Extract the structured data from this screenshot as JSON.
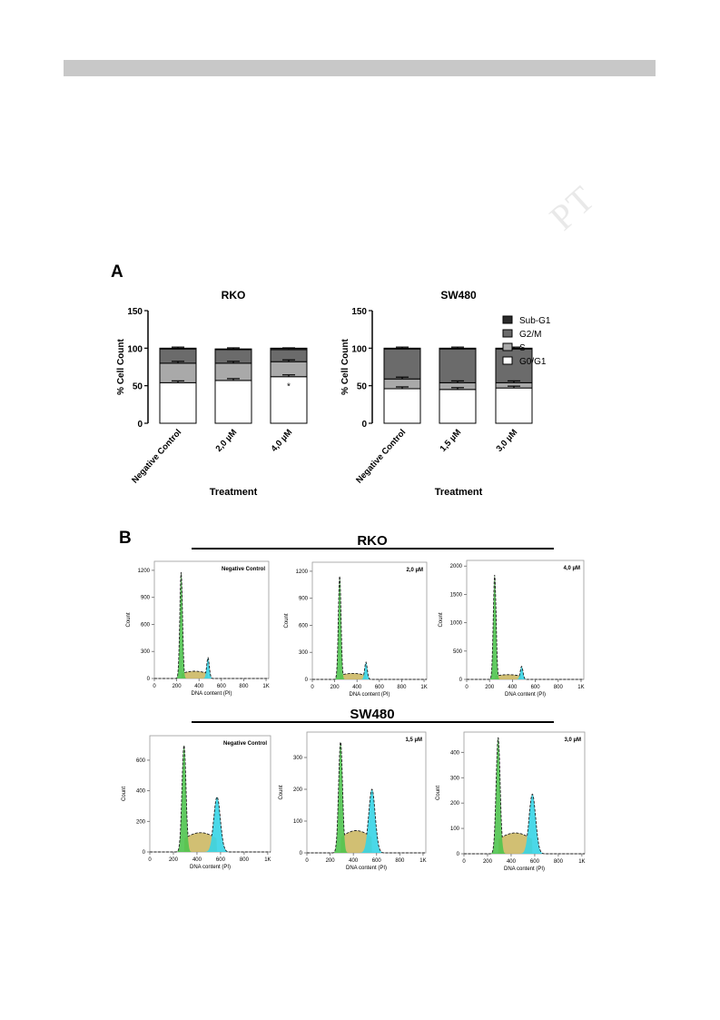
{
  "page": {
    "watermark": "PT"
  },
  "panel_labels": {
    "a": "A",
    "b": "B"
  },
  "panel_b_titles": {
    "rko": "RKO",
    "sw480": "SW480"
  },
  "colors": {
    "g0g1": "#ffffff",
    "s": "#a9a9a9",
    "g2m": "#6b6b6b",
    "subg1": "#2b2b2b",
    "peak1": "#4fc44f",
    "peak_s": "#c9b45a",
    "peak2": "#36d4e6"
  },
  "chart_data": [
    {
      "type": "bar",
      "stacked": true,
      "title": "RKO",
      "xlabel": "Treatment",
      "ylabel": "% Cell Count",
      "ylim": [
        0,
        150
      ],
      "yticks": [
        "0",
        "50",
        "100",
        "150"
      ],
      "categories": [
        "Negative Control",
        "2,0 µM",
        "4,0 µM"
      ],
      "series": [
        {
          "name": "G0/G1",
          "values": [
            54,
            57,
            62
          ]
        },
        {
          "name": "S",
          "values": [
            26,
            23,
            20
          ]
        },
        {
          "name": "G2/M",
          "values": [
            19,
            18,
            16
          ]
        },
        {
          "name": "Sub-G1",
          "values": [
            1,
            1,
            2
          ]
        }
      ],
      "annotations": [
        "",
        "",
        "*"
      ]
    },
    {
      "type": "bar",
      "stacked": true,
      "title": "SW480",
      "xlabel": "Treatment",
      "ylabel": "% Cell Count",
      "ylim": [
        0,
        150
      ],
      "yticks": [
        "0",
        "50",
        "100",
        "150"
      ],
      "categories": [
        "Negative Control",
        "1,5 µM",
        "3,0 µM"
      ],
      "series": [
        {
          "name": "G0/G1",
          "values": [
            46,
            45,
            47
          ]
        },
        {
          "name": "S",
          "values": [
            13,
            9,
            7
          ]
        },
        {
          "name": "G2/M",
          "values": [
            40,
            45,
            45
          ]
        },
        {
          "name": "Sub-G1",
          "values": [
            1,
            1,
            1
          ]
        }
      ],
      "legend": [
        "Sub-G1",
        "G2/M",
        "S",
        "G0/G1"
      ],
      "legend_position": "right"
    },
    {
      "type": "area",
      "label": "Negative Control",
      "xlabel": "DNA content (PI)",
      "ylabel": "Count",
      "xlim": [
        0,
        1024
      ],
      "ylim": [
        0,
        1300
      ],
      "xticks": [
        "0",
        "200",
        "400",
        "600",
        "800",
        "1K"
      ],
      "yticks": [
        "0",
        "300",
        "600",
        "900",
        "1200"
      ],
      "g1_peak": {
        "x": 240,
        "height": 1180
      },
      "g2_peak": {
        "x": 480,
        "height": 230
      }
    },
    {
      "type": "area",
      "label": "2,0 µM",
      "xlabel": "DNA content (PI)",
      "ylabel": "Count",
      "xlim": [
        0,
        1024
      ],
      "ylim": [
        0,
        1300
      ],
      "xticks": [
        "0",
        "200",
        "400",
        "600",
        "800",
        "1K"
      ],
      "yticks": [
        "0",
        "300",
        "600",
        "900",
        "1200"
      ],
      "g1_peak": {
        "x": 245,
        "height": 1150
      },
      "g2_peak": {
        "x": 480,
        "height": 190
      }
    },
    {
      "type": "area",
      "label": "4,0 µM",
      "xlabel": "DNA content (PI)",
      "ylabel": "Count",
      "xlim": [
        0,
        1024
      ],
      "ylim": [
        0,
        2100
      ],
      "xticks": [
        "0",
        "200",
        "400",
        "600",
        "800",
        "1K"
      ],
      "yticks": [
        "0",
        "500",
        "1000",
        "1500",
        "2000"
      ],
      "g1_peak": {
        "x": 245,
        "height": 1850
      },
      "g2_peak": {
        "x": 480,
        "height": 230
      }
    },
    {
      "type": "area",
      "label": "Negative Control",
      "xlabel": "DNA content (PI)",
      "ylabel": "Count",
      "xlim": [
        0,
        1024
      ],
      "ylim": [
        0,
        760
      ],
      "xticks": [
        "0",
        "200",
        "400",
        "600",
        "800",
        "1K"
      ],
      "yticks": [
        "0",
        "200",
        "400",
        "600"
      ],
      "g1_peak": {
        "x": 290,
        "height": 700
      },
      "g2_peak": {
        "x": 570,
        "height": 360
      }
    },
    {
      "type": "area",
      "label": "1,5 µM",
      "xlabel": "DNA content (PI)",
      "ylabel": "Count",
      "xlim": [
        0,
        1024
      ],
      "ylim": [
        0,
        380
      ],
      "xticks": [
        "0",
        "200",
        "400",
        "600",
        "800",
        "1K"
      ],
      "yticks": [
        "0",
        "100",
        "200",
        "300"
      ],
      "g1_peak": {
        "x": 290,
        "height": 350
      },
      "g2_peak": {
        "x": 560,
        "height": 200
      }
    },
    {
      "type": "area",
      "label": "3,0 µM",
      "xlabel": "DNA content (PI)",
      "ylabel": "Count",
      "xlim": [
        0,
        1024
      ],
      "ylim": [
        0,
        480
      ],
      "xticks": [
        "0",
        "200",
        "400",
        "600",
        "800",
        "1K"
      ],
      "yticks": [
        "0",
        "100",
        "200",
        "300",
        "400"
      ],
      "g1_peak": {
        "x": 290,
        "height": 460
      },
      "g2_peak": {
        "x": 580,
        "height": 235
      }
    }
  ]
}
